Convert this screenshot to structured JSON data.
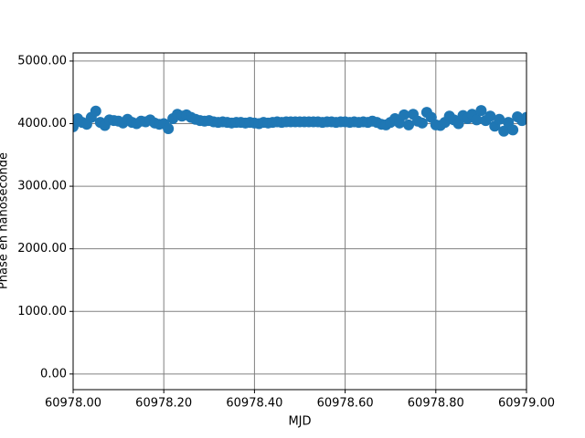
{
  "chart_data": {
    "type": "scatter",
    "xlabel": "MJD",
    "ylabel": "Phase en nanoseconde",
    "xlim": [
      60978,
      60979
    ],
    "ylim": [
      -250,
      5130
    ],
    "xticks": [
      {
        "value": 60978,
        "label": "60978.00"
      },
      {
        "value": 60978.2,
        "label": "60978.20"
      },
      {
        "value": 60978.4,
        "label": "60978.40"
      },
      {
        "value": 60978.6,
        "label": "60978.60"
      },
      {
        "value": 60978.8,
        "label": "60978.80"
      },
      {
        "value": 60979,
        "label": "60979.00"
      }
    ],
    "yticks": [
      {
        "value": 0,
        "label": "0.00"
      },
      {
        "value": 1000,
        "label": "1000.00"
      },
      {
        "value": 2000,
        "label": "2000.00"
      },
      {
        "value": 3000,
        "label": "3000.00"
      },
      {
        "value": 4000,
        "label": "4000.00"
      },
      {
        "value": 5000,
        "label": "5000.00"
      }
    ],
    "grid": true,
    "series": [
      {
        "color": "#1f77b4",
        "x": [
          60978.0,
          60978.01,
          60978.02,
          60978.03,
          60978.04,
          60978.05,
          60978.06,
          60978.07,
          60978.08,
          60978.09,
          60978.1,
          60978.11,
          60978.12,
          60978.13,
          60978.14,
          60978.15,
          60978.16,
          60978.17,
          60978.18,
          60978.19,
          60978.2,
          60978.21,
          60978.22,
          60978.23,
          60978.24,
          60978.25,
          60978.26,
          60978.27,
          60978.28,
          60978.29,
          60978.3,
          60978.31,
          60978.32,
          60978.33,
          60978.34,
          60978.35,
          60978.36,
          60978.37,
          60978.38,
          60978.39,
          60978.4,
          60978.41,
          60978.42,
          60978.43,
          60978.44,
          60978.45,
          60978.46,
          60978.47,
          60978.48,
          60978.49,
          60978.5,
          60978.51,
          60978.52,
          60978.53,
          60978.54,
          60978.55,
          60978.56,
          60978.57,
          60978.58,
          60978.59,
          60978.6,
          60978.61,
          60978.62,
          60978.63,
          60978.64,
          60978.65,
          60978.66,
          60978.67,
          60978.68,
          60978.69,
          60978.7,
          60978.71,
          60978.72,
          60978.73,
          60978.74,
          60978.75,
          60978.76,
          60978.77,
          60978.78,
          60978.79,
          60978.8,
          60978.81,
          60978.82,
          60978.83,
          60978.84,
          60978.85,
          60978.86,
          60978.87,
          60978.88,
          60978.89,
          60978.9,
          60978.91,
          60978.92,
          60978.93,
          60978.94,
          60978.95,
          60978.96,
          60978.97,
          60978.98,
          60978.99,
          60979.0
        ],
        "values": [
          3950,
          4080,
          4020,
          3990,
          4100,
          4200,
          4020,
          3970,
          4060,
          4050,
          4040,
          4010,
          4070,
          4020,
          4000,
          4040,
          4030,
          4060,
          4010,
          3990,
          4000,
          3920,
          4080,
          4150,
          4120,
          4140,
          4100,
          4070,
          4050,
          4040,
          4050,
          4030,
          4020,
          4030,
          4020,
          4010,
          4020,
          4020,
          4010,
          4020,
          4010,
          4000,
          4020,
          4010,
          4020,
          4030,
          4020,
          4030,
          4030,
          4030,
          4030,
          4030,
          4030,
          4030,
          4030,
          4020,
          4030,
          4030,
          4020,
          4030,
          4030,
          4020,
          4030,
          4020,
          4030,
          4020,
          4040,
          4020,
          3990,
          3980,
          4020,
          4080,
          4010,
          4140,
          3980,
          4150,
          4040,
          4010,
          4180,
          4100,
          3980,
          3970,
          4020,
          4120,
          4060,
          4000,
          4130,
          4080,
          4150,
          4060,
          4210,
          4050,
          4120,
          3960,
          4070,
          3880,
          4020,
          3900,
          4110,
          4050,
          4100
        ]
      }
    ]
  }
}
